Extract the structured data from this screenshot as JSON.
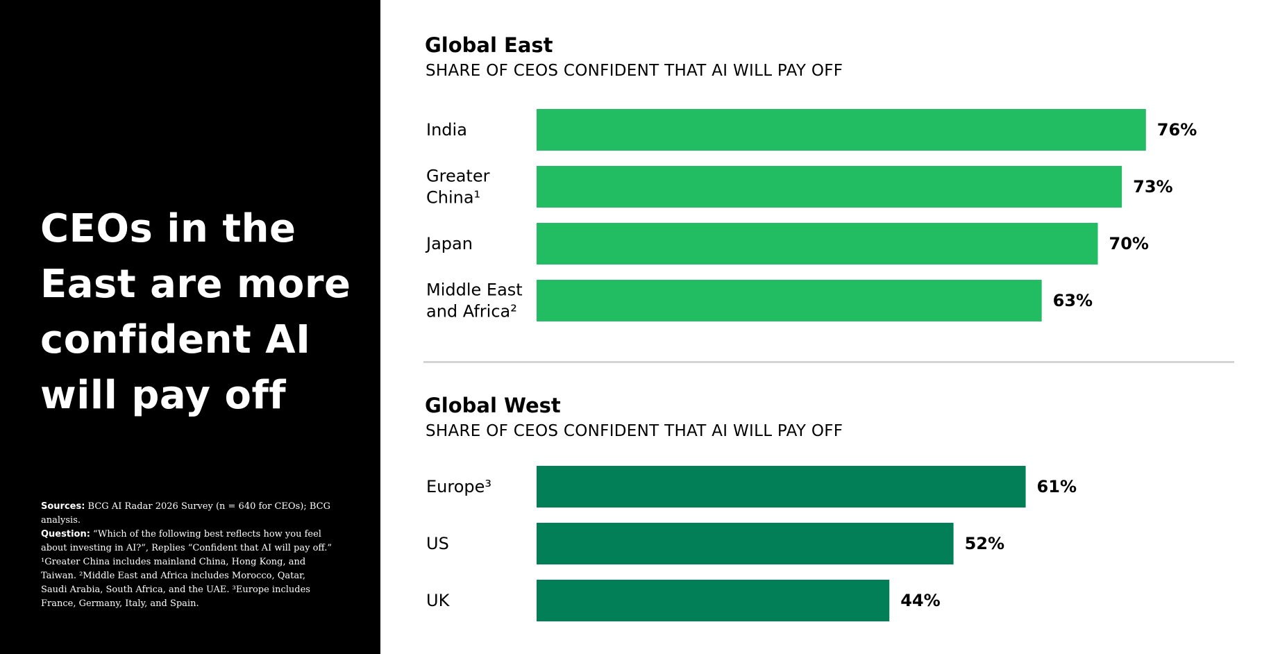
{
  "headline": "CEOs in the East are more confident AI will pay off",
  "footnotes": {
    "sources_label": "Sources:",
    "sources_text": " BCG AI Radar 2026 Survey (n = 640 for CEOs); BCG analysis.",
    "question_label": "Question:",
    "question_text": " “Which of the following best reflects how you feel about investing in AI?”, Replies “Confident that AI will pay off.”",
    "notes_text": "¹Greater China includes mainland China, Hong Kong, and Taiwan. ²Middle East and Africa includes Morocco, Qatar, Saudi Arabia, South Africa, and the UAE. ³Europe includes France, Germany, Italy, and Spain."
  },
  "chart_data": [
    {
      "type": "bar",
      "orientation": "horizontal",
      "title": "Global East",
      "subtitle": "SHARE OF CEOS CONFIDENT THAT AI WILL PAY OFF",
      "categories": [
        [
          "India"
        ],
        [
          "Greater",
          "China¹"
        ],
        [
          "Japan"
        ],
        [
          "Middle East",
          "and Africa²"
        ]
      ],
      "values": [
        76,
        73,
        70,
        63
      ],
      "value_labels": [
        "76%",
        "73%",
        "70%",
        "63%"
      ],
      "unit": "%",
      "color": "#22bd63"
    },
    {
      "type": "bar",
      "orientation": "horizontal",
      "title": "Global West",
      "subtitle": "SHARE OF CEOS CONFIDENT THAT AI WILL PAY OFF",
      "categories": [
        [
          "Europe³"
        ],
        [
          "US"
        ],
        [
          "UK"
        ]
      ],
      "values": [
        61,
        52,
        44
      ],
      "value_labels": [
        "61%",
        "52%",
        "44%"
      ],
      "unit": "%",
      "color": "#027f56"
    }
  ]
}
